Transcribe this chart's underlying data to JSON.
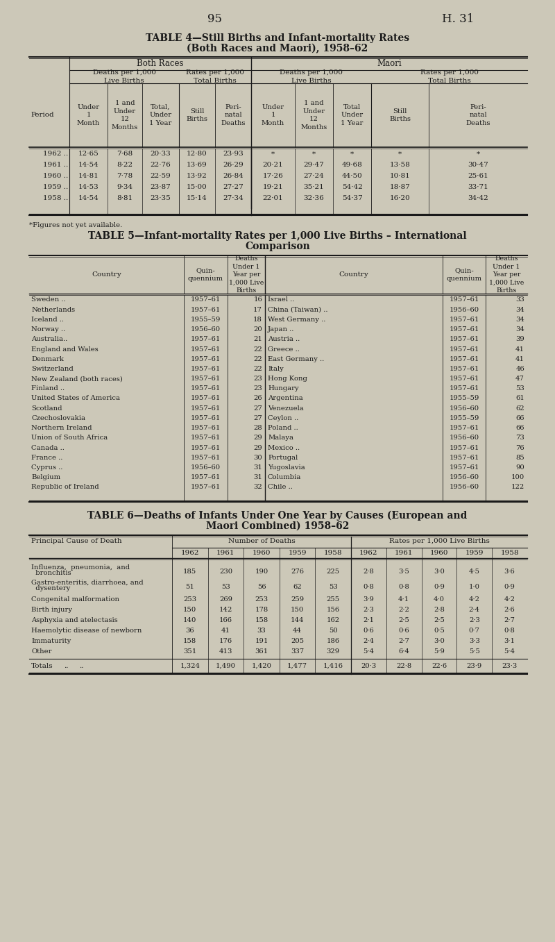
{
  "bg_color": "#ccc8b8",
  "text_color": "#1a1a1a",
  "page_num": "95",
  "page_ref": "H. 31",
  "table4": {
    "title_line1": "TABLE 4—Still Births and Infant-mortality Rates",
    "title_line2": "(Both Races and Maori), 1958–62",
    "periods": [
      "1962 ..",
      "1961 ..",
      "1960 ..",
      "1959 ..",
      "1958 .."
    ],
    "data": [
      [
        "12·65",
        "7·68",
        "20·33",
        "12·80",
        "23·93",
        "*",
        "*",
        "*",
        "*",
        "*"
      ],
      [
        "14·54",
        "8·22",
        "22·76",
        "13·69",
        "26·29",
        "20·21",
        "29·47",
        "49·68",
        "13·58",
        "30·47"
      ],
      [
        "14·81",
        "7·78",
        "22·59",
        "13·92",
        "26·84",
        "17·26",
        "27·24",
        "44·50",
        "10·81",
        "25·61"
      ],
      [
        "14·53",
        "9·34",
        "23·87",
        "15·00",
        "27·27",
        "19·21",
        "35·21",
        "54·42",
        "18·87",
        "33·71"
      ],
      [
        "14·54",
        "8·81",
        "23·35",
        "15·14",
        "27·34",
        "22·01",
        "32·36",
        "54·37",
        "16·20",
        "34·42"
      ]
    ],
    "footnote": "*Figures not yet available."
  },
  "table5": {
    "title_line1": "TABLE 5—Infant-mortality Rates per 1,000 Live Births – International",
    "title_line2": "Comparison",
    "left_data": [
      [
        "Sweden ..",
        "1957–61",
        "16"
      ],
      [
        "Netherlands",
        "1957–61",
        "17"
      ],
      [
        "Iceland ..",
        "1955–59",
        "18"
      ],
      [
        "Norway ..",
        "1956–60",
        "20"
      ],
      [
        "Australia..",
        "1957–61",
        "21"
      ],
      [
        "England and Wales",
        "1957–61",
        "22"
      ],
      [
        "Denmark",
        "1957–61",
        "22"
      ],
      [
        "Switzerland",
        "1957–61",
        "22"
      ],
      [
        "New Zealand (both races)",
        "1957–61",
        "23"
      ],
      [
        "Finland ..",
        "1957–61",
        "23"
      ],
      [
        "United States of America",
        "1957–61",
        "26"
      ],
      [
        "Scotland",
        "1957–61",
        "27"
      ],
      [
        "Czechoslovakia",
        "1957–61",
        "27"
      ],
      [
        "Northern Ireland",
        "1957–61",
        "28"
      ],
      [
        "Union of South Africa",
        "1957–61",
        "29"
      ],
      [
        "Canada ..",
        "1957–61",
        "29"
      ],
      [
        "France ..",
        "1957–61",
        "30"
      ],
      [
        "Cyprus ..",
        "1956–60",
        "31"
      ],
      [
        "Belgium",
        "1957–61",
        "31"
      ],
      [
        "Republic of Ireland",
        "1957–61",
        "32"
      ]
    ],
    "right_data": [
      [
        "Israel ..",
        "1957–61",
        "33"
      ],
      [
        "China (Taiwan) ..",
        "1956–60",
        "34"
      ],
      [
        "West Germany ..",
        "1957–61",
        "34"
      ],
      [
        "Japan ..",
        "1957–61",
        "34"
      ],
      [
        "Austria ..",
        "1957–61",
        "39"
      ],
      [
        "Greece ..",
        "1957–61",
        "41"
      ],
      [
        "East Germany ..",
        "1957–61",
        "41"
      ],
      [
        "Italy",
        "1957–61",
        "46"
      ],
      [
        "Hong Kong",
        "1957–61",
        "47"
      ],
      [
        "Hungary",
        "1957–61",
        "53"
      ],
      [
        "Argentina",
        "1955–59",
        "61"
      ],
      [
        "Venezuela",
        "1956–60",
        "62"
      ],
      [
        "Ceylon ..",
        "1955–59",
        "66"
      ],
      [
        "Poland ..",
        "1957–61",
        "66"
      ],
      [
        "Malaya",
        "1956–60",
        "73"
      ],
      [
        "Mexico ..",
        "1957–61",
        "76"
      ],
      [
        "Portugal",
        "1957–61",
        "85"
      ],
      [
        "Yugoslavia",
        "1957–61",
        "90"
      ],
      [
        "Columbia",
        "1956–60",
        "100"
      ],
      [
        "Chile ..",
        "1956–60",
        "122"
      ]
    ]
  },
  "table6": {
    "title_line1": "TABLE 6—Deaths of Infants Under One Year by Causes (European and",
    "title_line2": "Maori Combined) 1958–62",
    "col_group1": "Number of Deaths",
    "col_group2": "Rates per 1,000 Live Births",
    "row_label": "Principal Cause of Death",
    "years": [
      "1962",
      "1961",
      "1960",
      "1959",
      "1958",
      "1962",
      "1961",
      "1960",
      "1959",
      "1958"
    ],
    "causes": [
      [
        "Influenza,  pneumonia,  and",
        "  bronchitis"
      ],
      [
        "Gastro-enteritis, diarrhoea, and",
        "  dysentery"
      ],
      [
        "Congenital malformation",
        ""
      ],
      [
        "Birth injury",
        ""
      ],
      [
        "Asphyxia and atelectasis",
        ""
      ],
      [
        "Haemolytic disease of newborn",
        ""
      ],
      [
        "Immaturity",
        ""
      ],
      [
        "Other",
        ""
      ]
    ],
    "data": [
      [
        "185",
        "230",
        "190",
        "276",
        "225",
        "2·8",
        "3·5",
        "3·0",
        "4·5",
        "3·6"
      ],
      [
        "51",
        "53",
        "56",
        "62",
        "53",
        "0·8",
        "0·8",
        "0·9",
        "1·0",
        "0·9"
      ],
      [
        "253",
        "269",
        "253",
        "259",
        "255",
        "3·9",
        "4·1",
        "4·0",
        "4·2",
        "4·2"
      ],
      [
        "150",
        "142",
        "178",
        "150",
        "156",
        "2·3",
        "2·2",
        "2·8",
        "2·4",
        "2·6"
      ],
      [
        "140",
        "166",
        "158",
        "144",
        "162",
        "2·1",
        "2·5",
        "2·5",
        "2·3",
        "2·7"
      ],
      [
        "36",
        "41",
        "33",
        "44",
        "50",
        "0·6",
        "0·6",
        "0·5",
        "0·7",
        "0·8"
      ],
      [
        "158",
        "176",
        "191",
        "205",
        "186",
        "2·4",
        "2·7",
        "3·0",
        "3·3",
        "3·1"
      ],
      [
        "351",
        "413",
        "361",
        "337",
        "329",
        "5·4",
        "6·4",
        "5·9",
        "5·5",
        "5·4"
      ]
    ],
    "totals": [
      "1,324",
      "1,490",
      "1,420",
      "1,477",
      "1,416",
      "20·3",
      "22·8",
      "22·6",
      "23·9",
      "23·3"
    ]
  }
}
